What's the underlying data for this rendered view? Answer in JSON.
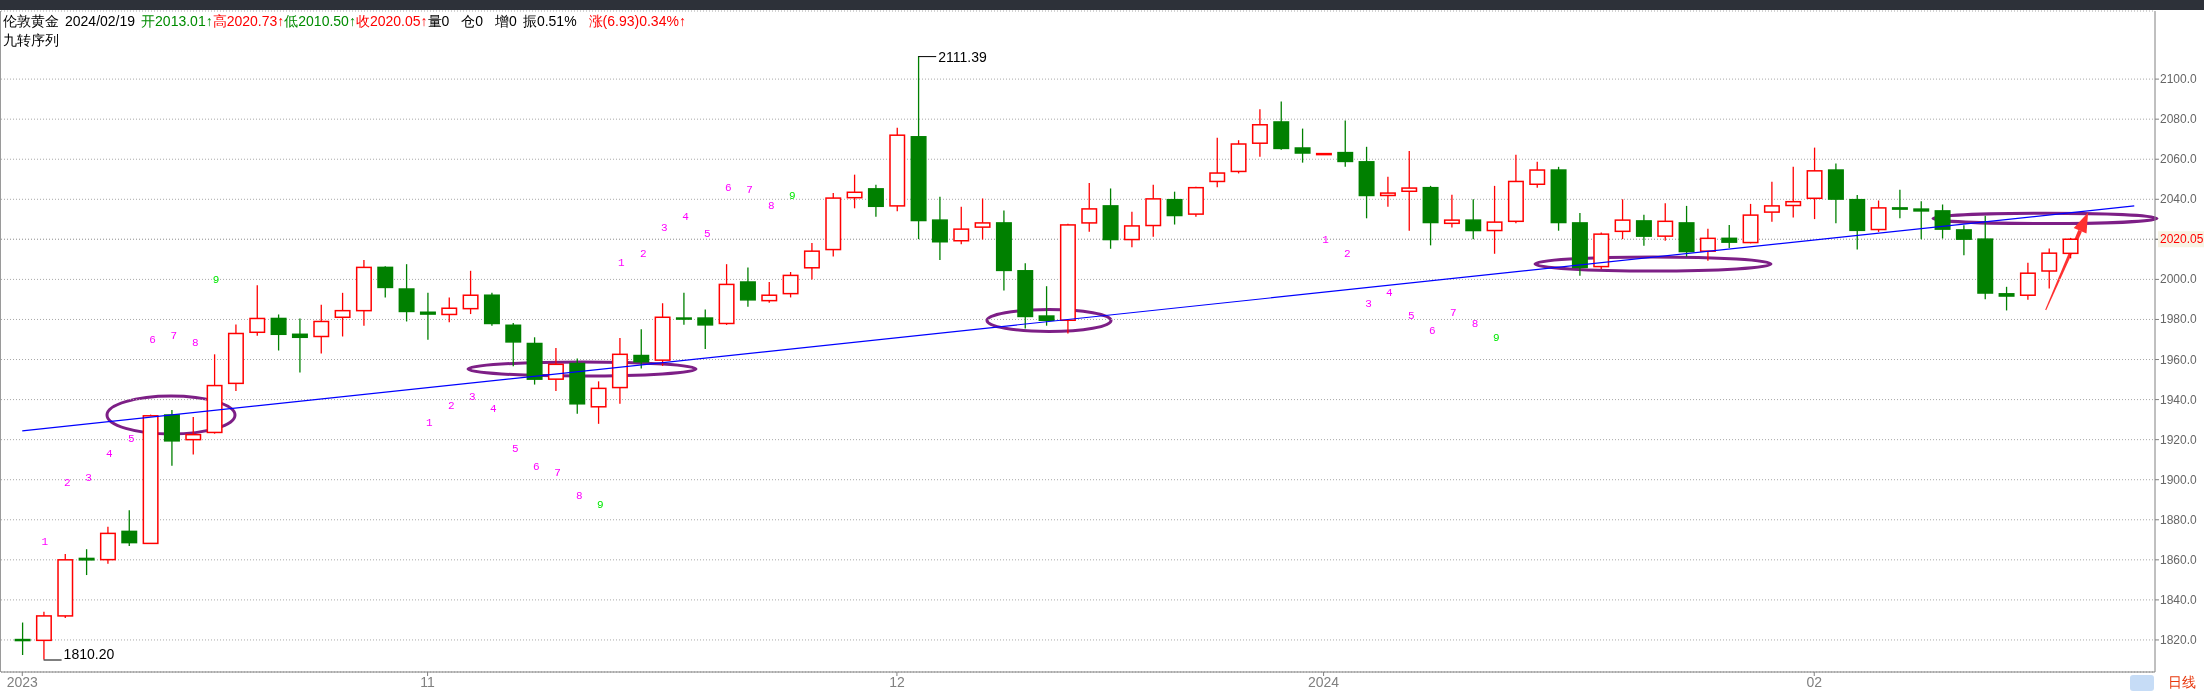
{
  "chart_data": {
    "type": "candlestick",
    "title": "伦敦黄金",
    "subtitle": "九转序列",
    "xlabel": "日线",
    "annotations": [
      "2024/02/19",
      "开2013.01↑",
      "高2020.73↑",
      "低2010.50↑",
      "收2020.05↑",
      "量0",
      "仓0",
      "增0",
      "振0.51%",
      "涨(6.93)0.34%↑",
      "2111.39",
      "1810.20",
      "1",
      "2",
      "3",
      "4",
      "5",
      "6",
      "7",
      "8",
      "9",
      "1",
      "2",
      "3",
      "4",
      "5",
      "6",
      "7",
      "8",
      "9",
      "1",
      "2",
      "3",
      "4",
      "5",
      "6",
      "7",
      "8",
      "9",
      "1",
      "2",
      "3",
      "4",
      "5",
      "6",
      "7",
      "8",
      "9"
    ],
    "categories": [
      "2023",
      null,
      null,
      null,
      null,
      null,
      null,
      null,
      null,
      null,
      null,
      null,
      null,
      null,
      null,
      null,
      null,
      null,
      null,
      "11",
      null,
      null,
      null,
      null,
      null,
      null,
      null,
      null,
      null,
      null,
      null,
      null,
      null,
      null,
      null,
      null,
      null,
      null,
      null,
      null,
      null,
      "12",
      null,
      null,
      null,
      null,
      null,
      null,
      null,
      null,
      null,
      null,
      null,
      null,
      null,
      null,
      null,
      null,
      null,
      null,
      null,
      "2024",
      null,
      null,
      null,
      null,
      null,
      null,
      null,
      null,
      null,
      null,
      null,
      null,
      null,
      null,
      null,
      null,
      null,
      null,
      null,
      null,
      null,
      null,
      "02",
      null,
      null,
      null,
      null,
      null,
      null,
      null,
      null,
      null,
      null,
      null,
      null,
      null,
      null,
      null
    ],
    "ohlc": [
      [
        1820.2,
        1828.7,
        1812.5,
        1819.8
      ],
      [
        1819.8,
        1834.1,
        1810.2,
        1832.0
      ],
      [
        1832.0,
        1862.9,
        1831.0,
        1860.0
      ],
      [
        1860.7,
        1865.3,
        1852.4,
        1860.0
      ],
      [
        1860.1,
        1876.5,
        1858.0,
        1873.2
      ],
      [
        1874.2,
        1884.8,
        1866.9,
        1868.6
      ],
      [
        1868.2,
        1932.5,
        1868.0,
        1931.9
      ],
      [
        1932.3,
        1934.8,
        1907.0,
        1919.4
      ],
      [
        1920.0,
        1931.3,
        1912.6,
        1922.5
      ],
      [
        1923.6,
        1962.6,
        1923.0,
        1947.0
      ],
      [
        1948.1,
        1977.5,
        1944.3,
        1973.0
      ],
      [
        1973.6,
        1997.1,
        1971.9,
        1980.5
      ],
      [
        1980.5,
        1982.5,
        1964.5,
        1972.6
      ],
      [
        1972.6,
        1980.5,
        1953.5,
        1971.1
      ],
      [
        1971.5,
        1987.3,
        1963.0,
        1979.0
      ],
      [
        1981.1,
        1993.3,
        1971.5,
        1984.4
      ],
      [
        1984.4,
        2009.7,
        1976.9,
        2006.0
      ],
      [
        2006.0,
        2006.6,
        1991.0,
        1996.0
      ],
      [
        1995.2,
        2007.6,
        1979.0,
        1984.0
      ],
      [
        1983.6,
        1993.3,
        1969.9,
        1982.7
      ],
      [
        1982.5,
        1991.0,
        1978.6,
        1985.6
      ],
      [
        1985.4,
        2004.3,
        1982.7,
        1992.1
      ],
      [
        1992.1,
        1993.3,
        1976.9,
        1978.0
      ],
      [
        1977.1,
        1978.2,
        1956.6,
        1968.8
      ],
      [
        1968.0,
        1971.1,
        1947.5,
        1950.2
      ],
      [
        1950.2,
        1965.7,
        1944.3,
        1957.6
      ],
      [
        1958.0,
        1960.5,
        1932.9,
        1937.9
      ],
      [
        1936.4,
        1949.1,
        1927.9,
        1945.6
      ],
      [
        1946.0,
        1970.7,
        1937.9,
        1962.6
      ],
      [
        1962.0,
        1975.1,
        1955.5,
        1958.9
      ],
      [
        1959.7,
        1988.1,
        1956.8,
        1981.1
      ],
      [
        1980.7,
        1993.3,
        1977.3,
        1980.2
      ],
      [
        1980.7,
        1985.0,
        1965.3,
        1977.3
      ],
      [
        1978.0,
        2007.6,
        1977.3,
        1997.5
      ],
      [
        1998.7,
        2006.0,
        1986.3,
        1989.8
      ],
      [
        1989.4,
        1998.7,
        1988.3,
        1992.1
      ],
      [
        1992.9,
        2003.7,
        1991.0,
        2002.0
      ],
      [
        2005.8,
        2018.2,
        1999.9,
        2014.1
      ],
      [
        2014.9,
        2043.1,
        2011.4,
        2040.6
      ],
      [
        2040.8,
        2052.3,
        2035.5,
        2043.5
      ],
      [
        2045.2,
        2047.3,
        2031.3,
        2036.5
      ],
      [
        2036.7,
        2075.7,
        2034.0,
        2072.0
      ],
      [
        2071.2,
        2111.39,
        2020.1,
        2029.4
      ],
      [
        2029.6,
        2041.3,
        2009.7,
        2018.8
      ],
      [
        2019.3,
        2036.3,
        2017.6,
        2025.1
      ],
      [
        2026.1,
        2040.4,
        2019.9,
        2028.2
      ],
      [
        2028.2,
        2034.4,
        1994.4,
        2004.5
      ],
      [
        2004.3,
        2008.1,
        1975.5,
        1981.5
      ],
      [
        1981.7,
        1996.6,
        1976.9,
        1979.6
      ],
      [
        1979.6,
        2027.8,
        1973.0,
        2027.2
      ],
      [
        2028.2,
        2048.1,
        2023.8,
        2035.2
      ],
      [
        2036.7,
        2045.4,
        2015.3,
        2019.9
      ],
      [
        2019.9,
        2033.8,
        2016.0,
        2026.7
      ],
      [
        2026.9,
        2047.3,
        2021.3,
        2040.2
      ],
      [
        2039.8,
        2043.8,
        2027.4,
        2031.9
      ],
      [
        2032.6,
        2046.3,
        2031.3,
        2045.8
      ],
      [
        2048.9,
        2070.7,
        2046.0,
        2053.1
      ],
      [
        2053.9,
        2069.5,
        2052.9,
        2067.6
      ],
      [
        2068.0,
        2084.9,
        2061.2,
        2077.2
      ],
      [
        2078.6,
        2088.8,
        2064.7,
        2065.4
      ],
      [
        2065.6,
        2075.3,
        2058.3,
        2063.1
      ],
      [
        2062.6,
        2062.9,
        2062.4,
        2062.8
      ],
      [
        2063.3,
        2079.3,
        2056.2,
        2058.9
      ],
      [
        2058.7,
        2066.2,
        2030.5,
        2041.9
      ],
      [
        2041.9,
        2051.2,
        2036.3,
        2043.1
      ],
      [
        2044.0,
        2064.1,
        2024.3,
        2045.6
      ],
      [
        2045.8,
        2046.7,
        2017.0,
        2028.4
      ],
      [
        2028.0,
        2042.3,
        2025.9,
        2029.6
      ],
      [
        2029.6,
        2040.0,
        2020.1,
        2024.4
      ],
      [
        2024.4,
        2046.7,
        2012.8,
        2028.6
      ],
      [
        2029.0,
        2062.2,
        2028.0,
        2048.9
      ],
      [
        2047.5,
        2058.7,
        2045.8,
        2054.6
      ],
      [
        2054.6,
        2056.2,
        2024.3,
        2028.4
      ],
      [
        2028.2,
        2033.2,
        2001.8,
        2006.0
      ],
      [
        2006.4,
        2023.4,
        2005.2,
        2022.6
      ],
      [
        2024.0,
        2040.0,
        2020.1,
        2029.6
      ],
      [
        2029.2,
        2032.3,
        2016.8,
        2021.6
      ],
      [
        2021.6,
        2038.0,
        2019.3,
        2029.0
      ],
      [
        2028.2,
        2036.7,
        2011.4,
        2013.9
      ],
      [
        2014.1,
        2025.3,
        2009.3,
        2020.5
      ],
      [
        2020.5,
        2027.2,
        2015.7,
        2018.6
      ],
      [
        2018.4,
        2037.7,
        2018.0,
        2032.1
      ],
      [
        2033.6,
        2048.7,
        2028.8,
        2036.7
      ],
      [
        2036.9,
        2056.2,
        2030.9,
        2038.8
      ],
      [
        2040.5,
        2065.8,
        2030.1,
        2054.2
      ],
      [
        2054.6,
        2057.9,
        2028.0,
        2040.1
      ],
      [
        2039.8,
        2042.1,
        2014.9,
        2024.5
      ],
      [
        2024.9,
        2039.4,
        2023.7,
        2035.7
      ],
      [
        2035.7,
        2044.8,
        2030.5,
        2035.1
      ],
      [
        2035.1,
        2039.0,
        2020.1,
        2034.2
      ],
      [
        2034.2,
        2037.4,
        2020.4,
        2025.1
      ],
      [
        2024.7,
        2027.0,
        2012.1,
        2020.1
      ],
      [
        2020.1,
        2031.8,
        1990.1,
        1993.2
      ],
      [
        1992.8,
        1996.3,
        1984.5,
        1991.7
      ],
      [
        1992.1,
        2008.3,
        1989.9,
        2003.1
      ],
      [
        2004.2,
        2015.4,
        1995.5,
        2013.1
      ],
      [
        2013.01,
        2020.73,
        2010.5,
        2020.05
      ],
      null,
      null,
      null
    ],
    "series": [
      {
        "type": "line",
        "color": "#0000ff",
        "values": [
          1924.4,
          null,
          null,
          null,
          null,
          null,
          null,
          null,
          null,
          null,
          null,
          null,
          null,
          null,
          null,
          null,
          null,
          null,
          null,
          null,
          null,
          null,
          null,
          null,
          null,
          null,
          null,
          null,
          null,
          null,
          null,
          null,
          null,
          null,
          null,
          null,
          null,
          null,
          null,
          null,
          null,
          null,
          null,
          null,
          null,
          null,
          null,
          null,
          null,
          null,
          null,
          null,
          null,
          null,
          null,
          null,
          null,
          null,
          null,
          null,
          null,
          null,
          null,
          null,
          null,
          null,
          null,
          null,
          null,
          null,
          null,
          null,
          null,
          null,
          null,
          null,
          null,
          null,
          null,
          null,
          null,
          null,
          null,
          null,
          null,
          null,
          null,
          null,
          null,
          null,
          null,
          null,
          null,
          null,
          null,
          null,
          null,
          null,
          null,
          2036.7
        ]
      }
    ],
    "ylim": [
      1804,
      2134
    ],
    "yticks": [
      {
        "value": 1820,
        "label": "1820.0"
      },
      {
        "value": 1840,
        "label": "1840.0"
      },
      {
        "value": 1860,
        "label": "1860.0"
      },
      {
        "value": 1880,
        "label": "1880.0"
      },
      {
        "value": 1900,
        "label": "1900.0"
      },
      {
        "value": 1920,
        "label": "1920.0"
      },
      {
        "value": 1940,
        "label": "1940.0"
      },
      {
        "value": 1960,
        "label": "1960.0"
      },
      {
        "value": 1980,
        "label": "1980.0"
      },
      {
        "value": 2000,
        "label": "2000.0"
      },
      {
        "value": 2020,
        "label": null
      },
      2020.05,
      {
        "value": 2040,
        "label": "2040.0"
      },
      {
        "value": 2060,
        "label": "2060.0"
      },
      {
        "value": 2080,
        "label": "2080.0"
      },
      {
        "value": 2100,
        "label": "2100.0"
      }
    ],
    "grid": "y"
  }
}
